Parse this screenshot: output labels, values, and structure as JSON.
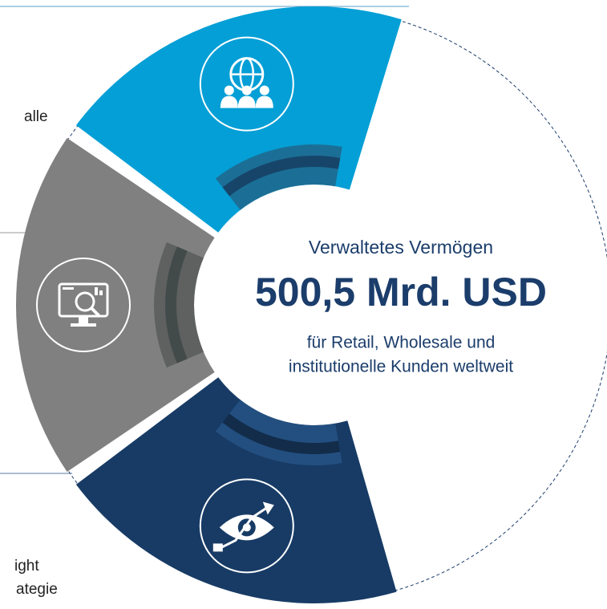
{
  "left_labels": [
    "alle",
    "ight",
    "ategie"
  ],
  "center": {
    "heading": "Verwaltetes Vermögen",
    "amount": "500,5 Mrd. USD",
    "lines": [
      "für Retail, Wholesale und",
      "institutionelle Kunden weltweit"
    ]
  }
}
